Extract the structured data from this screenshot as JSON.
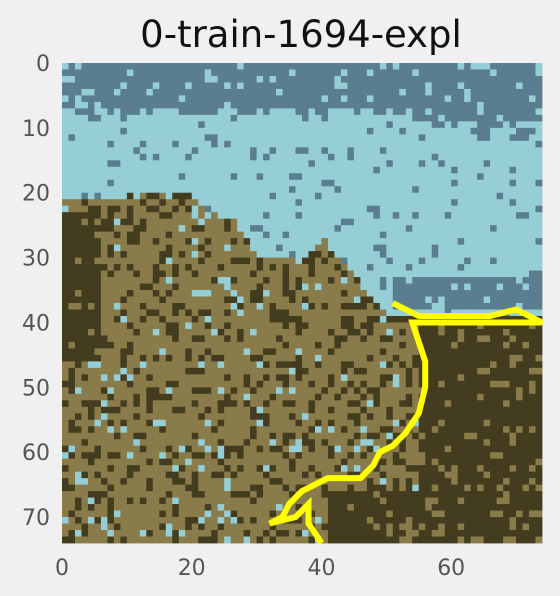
{
  "chart_data": {
    "type": "heatmap",
    "title": "0-train-1694-expl",
    "xlabel": "",
    "ylabel": "",
    "x_ticks": [
      "0",
      "20",
      "40",
      "60"
    ],
    "y_ticks": [
      "0",
      "10",
      "20",
      "30",
      "40",
      "50",
      "60",
      "70"
    ],
    "xlim": [
      0,
      74
    ],
    "ylim": [
      74,
      0
    ],
    "grid": false,
    "image_description_values": {
      "grid_size": [
        74,
        74
      ],
      "palette": {
        "sky": "#5a7d8f",
        "water": "#96ced6",
        "hill": "#8a7b4a",
        "shadow": "#433c1e",
        "highlight": "#ffff00"
      }
    },
    "highlight_path": [
      [
        51,
        37
      ],
      [
        53,
        38
      ],
      [
        55,
        39
      ],
      [
        60,
        39
      ],
      [
        66,
        39
      ],
      [
        70,
        38
      ],
      [
        74,
        40
      ],
      [
        54,
        40
      ],
      [
        55,
        43
      ],
      [
        56,
        46
      ],
      [
        56,
        50
      ],
      [
        55,
        54
      ],
      [
        53,
        57
      ],
      [
        51,
        59
      ],
      [
        49,
        60
      ],
      [
        48,
        62
      ],
      [
        46,
        64
      ],
      [
        44,
        64
      ],
      [
        41,
        64
      ],
      [
        39,
        65
      ],
      [
        37,
        66
      ],
      [
        35,
        68
      ],
      [
        34,
        70
      ],
      [
        32,
        71
      ],
      [
        36,
        70
      ],
      [
        38,
        68
      ],
      [
        38,
        71
      ],
      [
        40,
        74
      ]
    ]
  }
}
